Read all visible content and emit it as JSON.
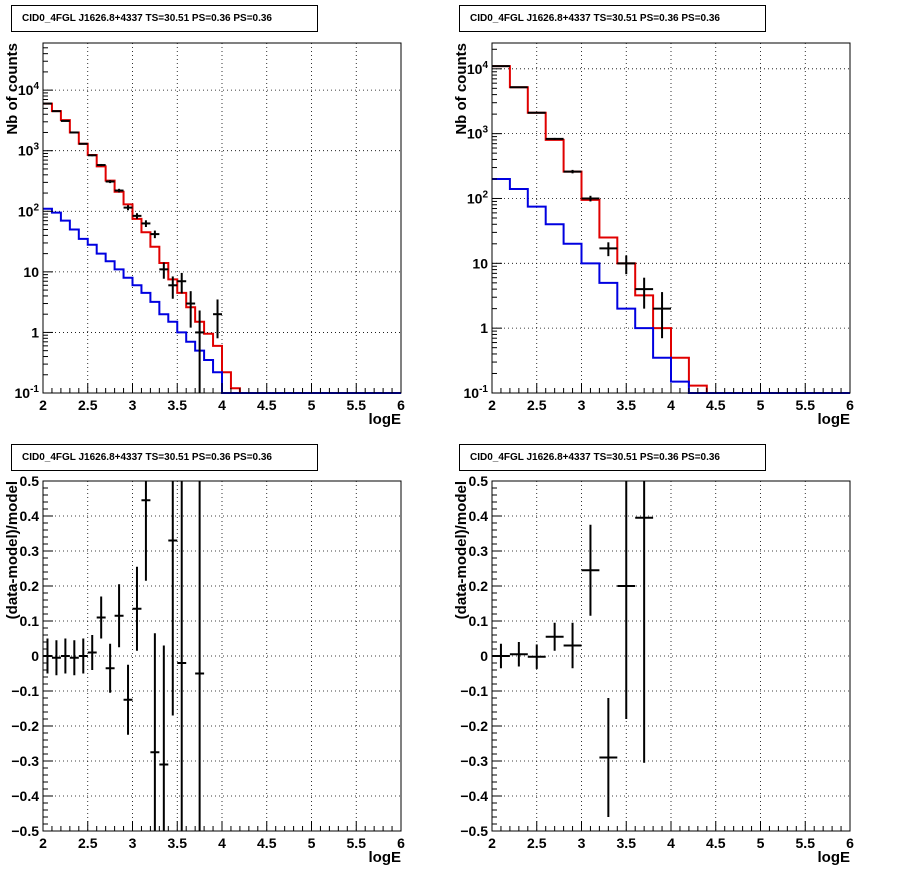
{
  "chart_data": [
    {
      "type": "line",
      "title": "CID0_4FGL J1626.8+4337 TS=30.51 PS=0.36 PS=0.36",
      "xlabel": "logE",
      "ylabel": "Nb of counts",
      "xlim": [
        2,
        6
      ],
      "ylim": [
        0.1,
        60000
      ],
      "ylog": true,
      "grid": true,
      "xticks": [
        "2",
        "2.5",
        "3",
        "3.5",
        "4",
        "4.5",
        "5",
        "5.5",
        "6"
      ],
      "yticks": [
        "10^-1",
        "1",
        "10",
        "10^2",
        "10^3",
        "10^4"
      ],
      "series": [
        {
          "color": "#e00000",
          "bin_edges": [
            2.0,
            2.1,
            2.2,
            2.3,
            2.4,
            2.5,
            2.6,
            2.7,
            2.8,
            2.9,
            3.0,
            3.1,
            3.2,
            3.3,
            3.4,
            3.5,
            3.6,
            3.7,
            3.8,
            3.9,
            4.0,
            4.1,
            4.2,
            4.3,
            4.4,
            4.5,
            4.6,
            4.7,
            4.8,
            4.9,
            5.0,
            5.1,
            5.2,
            5.3,
            5.4,
            5.5,
            5.6,
            5.7,
            5.8,
            5.9,
            6.0
          ],
          "values": [
            6000,
            4500,
            3200,
            2000,
            1300,
            850,
            550,
            320,
            210,
            130,
            75,
            45,
            26,
            14,
            7.5,
            4.5,
            2.6,
            1.5,
            0.95,
            0.6,
            0.22,
            0.12,
            0.1,
            0.1,
            0.1,
            0.1,
            0.1,
            0.1,
            0.1,
            0.1,
            0.1,
            0.1,
            0.1,
            0.1,
            0.1,
            0.1,
            0.1,
            0.1,
            0.1,
            0.1
          ]
        },
        {
          "color": "#0000e0",
          "bin_edges": [
            2.0,
            2.1,
            2.2,
            2.3,
            2.4,
            2.5,
            2.6,
            2.7,
            2.8,
            2.9,
            3.0,
            3.1,
            3.2,
            3.3,
            3.4,
            3.5,
            3.6,
            3.7,
            3.8,
            3.9,
            4.0,
            4.1,
            4.2,
            4.3,
            4.4,
            4.5,
            4.6,
            4.7,
            4.8,
            4.9,
            5.0,
            5.1,
            5.2,
            5.3,
            5.4,
            5.5,
            5.6,
            5.7,
            5.8,
            5.9,
            6.0
          ],
          "values": [
            110,
            95,
            70,
            50,
            35,
            28,
            20,
            15,
            11,
            8,
            6,
            4.5,
            3.2,
            2,
            1.5,
            1,
            0.7,
            0.5,
            0.35,
            0.22,
            0.1,
            0.1,
            0.1,
            0.1,
            0.1,
            0.1,
            0.1,
            0.1,
            0.1,
            0.1,
            0.1,
            0.1,
            0.1,
            0.1,
            0.1,
            0.1,
            0.1,
            0.1,
            0.1,
            0.1
          ]
        }
      ],
      "points": {
        "color": "#000000",
        "x": [
          2.05,
          2.15,
          2.25,
          2.35,
          2.45,
          2.55,
          2.65,
          2.75,
          2.85,
          2.95,
          3.05,
          3.15,
          3.25,
          3.35,
          3.45,
          3.55,
          3.65,
          3.75,
          3.85,
          3.95
        ],
        "y": [
          6000,
          4500,
          3100,
          2000,
          1300,
          840,
          580,
          310,
          220,
          115,
          84,
          63,
          42,
          11,
          6,
          7,
          3,
          1,
          0.1,
          2
        ],
        "xerr": 0.05,
        "yerr_lo": [
          80,
          70,
          60,
          45,
          36,
          29,
          24,
          18,
          15,
          11,
          9,
          8,
          6,
          3.3,
          2.4,
          2.6,
          1.8,
          0.9,
          0,
          1.2
        ],
        "yerr_hi": [
          80,
          70,
          60,
          45,
          36,
          29,
          24,
          18,
          15,
          11,
          9,
          8,
          6,
          3.3,
          2.4,
          2.6,
          1.8,
          1.3,
          0,
          1.5
        ]
      }
    },
    {
      "type": "line",
      "title": "CID0_4FGL J1626.8+4337 TS=30.51 PS=0.36 PS=0.36",
      "xlabel": "logE",
      "ylabel": "Nb of counts",
      "xlim": [
        2,
        6
      ],
      "ylim": [
        0.1,
        25000
      ],
      "ylog": true,
      "grid": true,
      "xticks": [
        "2",
        "2.5",
        "3",
        "3.5",
        "4",
        "4.5",
        "5",
        "5.5",
        "6"
      ],
      "yticks": [
        "10^-1",
        "1",
        "10",
        "10^2",
        "10^3",
        "10^4"
      ],
      "series": [
        {
          "color": "#e00000",
          "bin_edges": [
            2.0,
            2.2,
            2.4,
            2.6,
            2.8,
            3.0,
            3.2,
            3.4,
            3.6,
            3.8,
            4.0,
            4.2,
            4.4,
            4.6,
            4.8,
            5.0,
            5.2,
            5.4,
            5.6,
            5.8,
            6.0
          ],
          "values": [
            11000,
            5200,
            2100,
            800,
            260,
            95,
            25,
            10,
            3.2,
            1,
            0.35,
            0.13,
            0.1,
            0.1,
            0.1,
            0.1,
            0.1,
            0.1,
            0.1,
            0.1
          ]
        },
        {
          "color": "#0000e0",
          "bin_edges": [
            2.0,
            2.2,
            2.4,
            2.6,
            2.8,
            3.0,
            3.2,
            3.4,
            3.6,
            3.8,
            4.0,
            4.2,
            4.4,
            4.6,
            4.8,
            5.0,
            5.2,
            5.4,
            5.6,
            5.8,
            6.0
          ],
          "values": [
            200,
            140,
            75,
            40,
            20,
            10,
            5,
            2,
            1,
            0.35,
            0.15,
            0.1,
            0.1,
            0.1,
            0.1,
            0.1,
            0.1,
            0.1,
            0.1,
            0.1
          ]
        }
      ],
      "points": {
        "color": "#000000",
        "x": [
          2.1,
          2.3,
          2.5,
          2.7,
          2.9,
          3.1,
          3.3,
          3.5,
          3.7,
          3.9
        ],
        "y": [
          11000,
          5200,
          2100,
          830,
          260,
          100,
          17,
          10,
          4,
          2
        ],
        "xerr": 0.1,
        "yerr_lo": [
          105,
          72,
          46,
          29,
          16,
          10,
          4.1,
          3.2,
          2,
          1.3
        ],
        "yerr_hi": [
          105,
          72,
          46,
          29,
          16,
          10,
          4.1,
          3.2,
          2,
          1.6
        ]
      }
    },
    {
      "type": "scatter",
      "title": "CID0_4FGL J1626.8+4337 TS=30.51 PS=0.36 PS=0.36",
      "xlabel": "logE",
      "ylabel": "(data-model)/model",
      "xlim": [
        2,
        6
      ],
      "ylim": [
        -0.5,
        0.5
      ],
      "grid": true,
      "xticks": [
        "2",
        "2.5",
        "3",
        "3.5",
        "4",
        "4.5",
        "5",
        "5.5",
        "6"
      ],
      "yticks": [
        "−0.5",
        "−0.4",
        "−0.3",
        "−0.2",
        "−0.1",
        "0",
        "0.1",
        "0.2",
        "0.3",
        "0.4",
        "0.5"
      ],
      "points": {
        "color": "#000000",
        "x": [
          2.05,
          2.15,
          2.25,
          2.35,
          2.45,
          2.55,
          2.65,
          2.75,
          2.85,
          2.95,
          3.05,
          3.15,
          3.25,
          3.35,
          3.45,
          3.55,
          3.75
        ],
        "y": [
          0.0,
          -0.005,
          0.0,
          -0.005,
          0.0,
          0.01,
          0.11,
          -0.035,
          0.115,
          -0.125,
          0.135,
          0.445,
          -0.275,
          -0.31,
          0.33,
          -0.02,
          -0.05
        ],
        "xerr": 0.05,
        "yerr": [
          0.05,
          0.05,
          0.05,
          0.05,
          0.05,
          0.05,
          0.06,
          0.07,
          0.09,
          0.1,
          0.12,
          0.23,
          0.34,
          0.34,
          0.5,
          0.6,
          0.8
        ]
      }
    },
    {
      "type": "scatter",
      "title": "CID0_4FGL J1626.8+4337 TS=30.51 PS=0.36 PS=0.36",
      "xlabel": "logE",
      "ylabel": "(data-model)/model",
      "xlim": [
        2,
        6
      ],
      "ylim": [
        -0.5,
        0.5
      ],
      "grid": true,
      "xticks": [
        "2",
        "2.5",
        "3",
        "3.5",
        "4",
        "4.5",
        "5",
        "5.5",
        "6"
      ],
      "yticks": [
        "−0.5",
        "−0.4",
        "−0.3",
        "−0.2",
        "−0.1",
        "0",
        "0.1",
        "0.2",
        "0.3",
        "0.4",
        "0.5"
      ],
      "points": {
        "color": "#000000",
        "x": [
          2.1,
          2.3,
          2.5,
          2.7,
          2.9,
          3.1,
          3.3,
          3.5,
          3.7
        ],
        "y": [
          0.0,
          0.005,
          -0.002,
          0.055,
          0.03,
          0.245,
          -0.29,
          0.2,
          0.395
        ],
        "xerr": 0.1,
        "yerr": [
          0.035,
          0.035,
          0.035,
          0.04,
          0.065,
          0.13,
          0.17,
          0.38,
          0.7
        ]
      }
    }
  ]
}
